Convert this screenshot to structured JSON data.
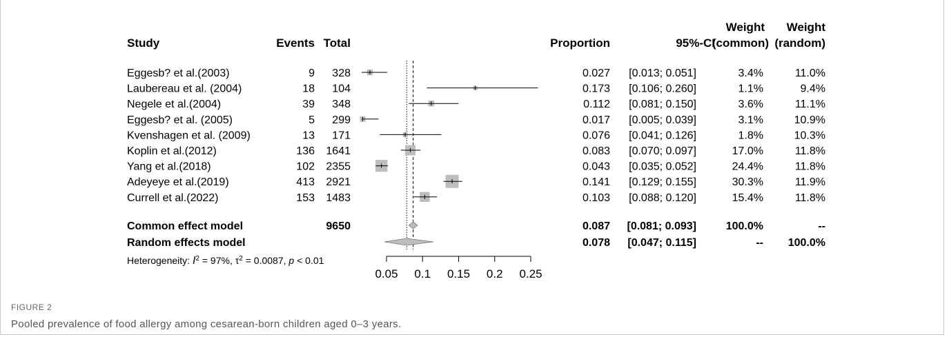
{
  "figure": {
    "label": "FIGURE 2",
    "caption": "Pooled prevalence of food allergy among cesarean-born children aged 0–3 years."
  },
  "headers": {
    "study": "Study",
    "events": "Events",
    "total": "Total",
    "proportion": "Proportion",
    "ci": "95%-CI",
    "weight_common_line1": "Weight",
    "weight_common_line2": "(common)",
    "weight_random_line1": "Weight",
    "weight_random_line2": "(random)"
  },
  "chart_data": {
    "type": "forest",
    "xlim": [
      0.05,
      0.25
    ],
    "xticks": [
      0.05,
      0.1,
      0.15,
      0.2,
      0.25
    ],
    "xtick_labels": [
      "0.05",
      "0.1",
      "0.15",
      "0.2",
      "0.25"
    ],
    "studies": [
      {
        "study": "Eggesb? et al.(2003)",
        "events": "9",
        "total": "328",
        "prop": 0.027,
        "lo": 0.013,
        "hi": 0.051,
        "prop_text": "0.027",
        "ci_text": "[0.013; 0.051]",
        "w_common": "3.4%",
        "w_random": "11.0%",
        "w": 3.4
      },
      {
        "study": "Laubereau et al. (2004)",
        "events": "18",
        "total": "104",
        "prop": 0.173,
        "lo": 0.106,
        "hi": 0.26,
        "prop_text": "0.173",
        "ci_text": "[0.106; 0.260]",
        "w_common": "1.1%",
        "w_random": "9.4%",
        "w": 1.1
      },
      {
        "study": "Negele et al.(2004)",
        "events": "39",
        "total": "348",
        "prop": 0.112,
        "lo": 0.081,
        "hi": 0.15,
        "prop_text": "0.112",
        "ci_text": "[0.081; 0.150]",
        "w_common": "3.6%",
        "w_random": "11.1%",
        "w": 3.6
      },
      {
        "study": "Eggesb? et al. (2005)",
        "events": "5",
        "total": "299",
        "prop": 0.017,
        "lo": 0.005,
        "hi": 0.039,
        "prop_text": "0.017",
        "ci_text": "[0.005; 0.039]",
        "w_common": "3.1%",
        "w_random": "10.9%",
        "w": 3.1
      },
      {
        "study": "Kvenshagen et al. (2009)",
        "events": "13",
        "total": "171",
        "prop": 0.076,
        "lo": 0.041,
        "hi": 0.126,
        "prop_text": "0.076",
        "ci_text": "[0.041; 0.126]",
        "w_common": "1.8%",
        "w_random": "10.3%",
        "w": 1.8
      },
      {
        "study": "Koplin et al.(2012)",
        "events": "136",
        "total": "1641",
        "prop": 0.083,
        "lo": 0.07,
        "hi": 0.097,
        "prop_text": "0.083",
        "ci_text": "[0.070; 0.097]",
        "w_common": "17.0%",
        "w_random": "11.8%",
        "w": 17.0
      },
      {
        "study": "Yang et al.(2018)",
        "events": "102",
        "total": "2355",
        "prop": 0.043,
        "lo": 0.035,
        "hi": 0.052,
        "prop_text": "0.043",
        "ci_text": "[0.035; 0.052]",
        "w_common": "24.4%",
        "w_random": "11.8%",
        "w": 24.4
      },
      {
        "study": "Adeyeye et al.(2019)",
        "events": "413",
        "total": "2921",
        "prop": 0.141,
        "lo": 0.129,
        "hi": 0.155,
        "prop_text": "0.141",
        "ci_text": "[0.129; 0.155]",
        "w_common": "30.3%",
        "w_random": "11.9%",
        "w": 30.3
      },
      {
        "study": "Currell et al.(2022)",
        "events": "153",
        "total": "1483",
        "prop": 0.103,
        "lo": 0.088,
        "hi": 0.12,
        "prop_text": "0.103",
        "ci_text": "[0.088; 0.120]",
        "w_common": "15.4%",
        "w_random": "11.8%",
        "w": 15.4
      }
    ],
    "pooled": [
      {
        "model": "Common effect model",
        "total": "9650",
        "prop": 0.087,
        "lo": 0.081,
        "hi": 0.093,
        "prop_text": "0.087",
        "ci_text": "[0.081; 0.093]",
        "w_common": "100.0%",
        "w_random": "--"
      },
      {
        "model": "Random effects model",
        "total": "",
        "prop": 0.078,
        "lo": 0.047,
        "hi": 0.115,
        "prop_text": "0.078",
        "ci_text": "[0.047; 0.115]",
        "w_common": "--",
        "w_random": "100.0%"
      }
    ],
    "heterogeneity": {
      "prefix": "Heterogeneity: ",
      "i2_symbol": "I",
      "i2_value": " = 97%, ",
      "tau2_symbol": "τ",
      "tau2_value": " = 0.0087, ",
      "p_symbol": "p",
      "p_value": " < 0.01"
    },
    "colors": {
      "box": "#bdbdbd",
      "diamond": "#bdbdbd",
      "line": "#000000"
    }
  }
}
